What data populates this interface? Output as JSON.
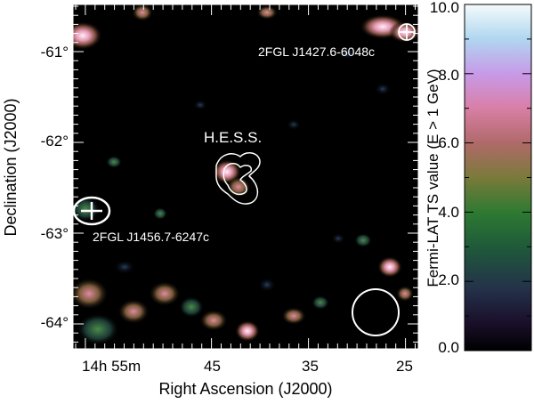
{
  "chart_data": {
    "type": "heatmap",
    "title": "",
    "xlabel": "Right Ascension (J2000)",
    "ylabel": "Declination (J2000)",
    "ra_ticks": [
      "14h 55m",
      "45",
      "35",
      "25"
    ],
    "dec_ticks": [
      "-61°",
      "-62°",
      "-63°",
      "-64°"
    ],
    "colorbar": {
      "label": "Fermi-LAT TS value (E > 1 GeV)",
      "range": [
        0.0,
        10.0
      ],
      "ticks": [
        "0.0",
        "2.0",
        "4.0",
        "6.0",
        "8.0",
        "10.0"
      ]
    },
    "annotations": {
      "hess": "H.E.S.S.",
      "source_east": "2FGL J1456.7-6247c",
      "source_west": "2FGL J1427.6-6048c"
    },
    "psf_circle_note": "beam size circle, lower right",
    "colors": {
      "background": "#000000",
      "foreground": "#ffffff",
      "axes": "#000000"
    }
  }
}
